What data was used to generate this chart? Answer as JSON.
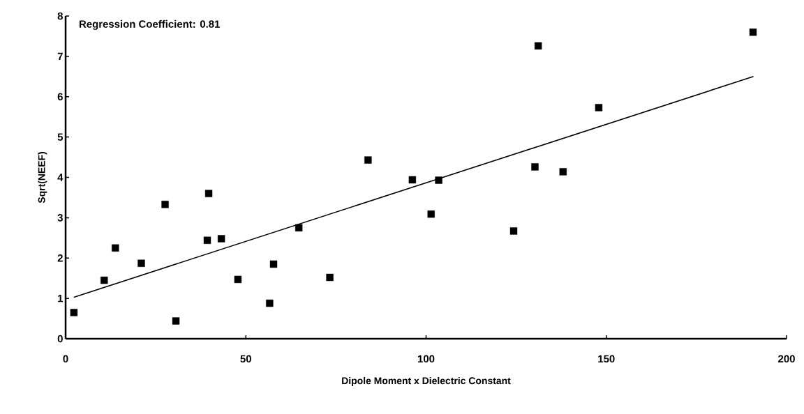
{
  "chart_data": {
    "type": "scatter",
    "xlabel": "Dipole Moment x Dielectric Constant",
    "ylabel": "Sqrt(NEEF)",
    "annotations": [
      "Regression Coefficient:  0.81"
    ],
    "xlim": [
      0,
      200
    ],
    "ylim": [
      0,
      8
    ],
    "xticks": [
      0,
      50,
      100,
      150,
      200
    ],
    "yticks": [
      0,
      1,
      2,
      3,
      4,
      5,
      6,
      7,
      8
    ],
    "grid": false,
    "marker": "square",
    "series": [
      {
        "color": "#000000",
        "x": [
          2.3,
          10.7,
          13.8,
          21.0,
          27.6,
          30.6,
          39.7,
          39.3,
          43.2,
          47.8,
          56.6,
          57.7,
          64.7,
          73.3,
          83.9,
          96.2,
          101.4,
          103.5,
          124.3,
          130.2,
          131.1,
          138.0,
          147.9,
          190.7
        ],
        "values": [
          0.65,
          1.45,
          2.25,
          1.87,
          3.33,
          0.44,
          3.6,
          2.44,
          2.48,
          1.47,
          0.88,
          1.85,
          2.75,
          1.52,
          4.43,
          3.94,
          3.09,
          3.93,
          2.67,
          4.26,
          7.26,
          4.14,
          5.73,
          7.6
        ]
      },
      {
        "type": "line",
        "color": "#000000",
        "marker": "none",
        "line_style": "solid",
        "x": [
          2.3,
          190.8
        ],
        "values": [
          1.03,
          6.5
        ]
      }
    ]
  }
}
